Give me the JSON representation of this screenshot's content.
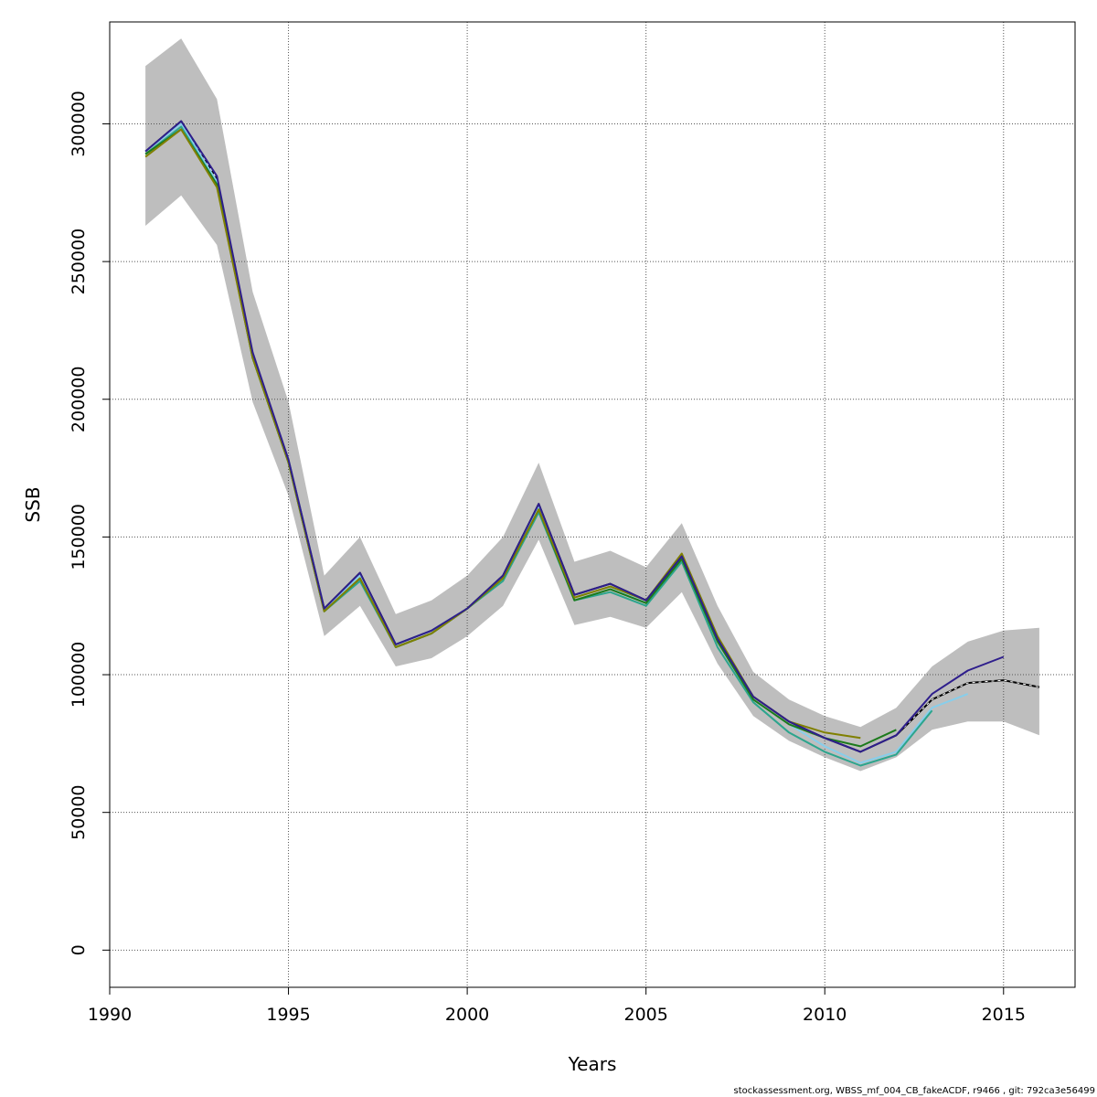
{
  "chart_data": {
    "type": "line",
    "title": "",
    "xlabel": "Years",
    "ylabel": "SSB",
    "xlim": [
      1990,
      2017
    ],
    "ylim": [
      -13500,
      337000
    ],
    "x_ticks": [
      1990,
      1995,
      2000,
      2005,
      2010,
      2015
    ],
    "x_tick_labels": [
      "1990",
      "1995",
      "2000",
      "2005",
      "2010",
      "2015"
    ],
    "y_ticks": [
      0,
      50000,
      100000,
      150000,
      200000,
      250000,
      300000
    ],
    "y_tick_labels": [
      "0",
      "50000",
      "100000",
      "150000",
      "200000",
      "250000",
      "300000"
    ],
    "grid": true,
    "legend": "none",
    "confidence_band": {
      "color": "#bebebe",
      "x": [
        1991,
        1992,
        1993,
        1994,
        1995,
        1996,
        1997,
        1998,
        1999,
        2000,
        2001,
        2002,
        2003,
        2004,
        2005,
        2006,
        2007,
        2008,
        2009,
        2010,
        2011,
        2012,
        2013,
        2014,
        2015,
        2016
      ],
      "upper": [
        321000,
        331000,
        309000,
        239000,
        199000,
        136000,
        150000,
        122000,
        127000,
        136000,
        150000,
        177000,
        141000,
        145000,
        139000,
        155000,
        125000,
        101000,
        91000,
        85000,
        81000,
        88000,
        103000,
        112000,
        116000,
        117000
      ],
      "lower": [
        263000,
        274000,
        256000,
        199000,
        165000,
        114000,
        125000,
        103000,
        106000,
        114000,
        125000,
        149000,
        118000,
        121000,
        117000,
        130000,
        104000,
        85000,
        76000,
        70000,
        65000,
        70000,
        80000,
        83000,
        83000,
        78000
      ]
    },
    "series": [
      {
        "color": "#000000",
        "dashed": true,
        "x": [
          1991,
          1992,
          1993,
          1994,
          1995,
          1996,
          1997,
          1998,
          1999,
          2000,
          2001,
          2002,
          2003,
          2004,
          2005,
          2006,
          2007,
          2008,
          2009,
          2010,
          2011,
          2012,
          2013,
          2014,
          2015,
          2016
        ],
        "values": [
          290000,
          301000,
          280000,
          216000,
          178000,
          124000,
          137000,
          111000,
          116000,
          124000,
          136000,
          162000,
          129000,
          133000,
          127000,
          143000,
          113000,
          92000,
          83000,
          77000,
          72000,
          78000,
          91000,
          97000,
          98000,
          95500
        ]
      },
      {
        "color": "#87ceeb",
        "dashed": false,
        "x": [
          1991,
          1992,
          1993,
          1994,
          1995,
          1996,
          1997,
          1998,
          1999,
          2000,
          2001,
          2002,
          2003,
          2004,
          2005,
          2006,
          2007,
          2008,
          2009,
          2010,
          2011,
          2012,
          2013,
          2014
        ],
        "values": [
          290000,
          300000,
          279000,
          216000,
          178000,
          124000,
          136000,
          111000,
          116000,
          124000,
          135000,
          161000,
          128000,
          132000,
          126000,
          142000,
          112000,
          91000,
          82000,
          74000,
          68000,
          72000,
          88000,
          93000
        ]
      },
      {
        "color": "#2ca58d",
        "dashed": false,
        "x": [
          1991,
          1992,
          1993,
          1994,
          1995,
          1996,
          1997,
          1998,
          1999,
          2000,
          2001,
          2002,
          2003,
          2004,
          2005,
          2006,
          2007,
          2008,
          2009,
          2010,
          2011,
          2012,
          2013
        ],
        "values": [
          289000,
          299000,
          278000,
          215000,
          177000,
          123000,
          134000,
          110000,
          115000,
          124000,
          134000,
          159000,
          127000,
          130000,
          125000,
          141000,
          110000,
          90000,
          79000,
          72000,
          67000,
          71000,
          87000
        ]
      },
      {
        "color": "#1b7a1b",
        "dashed": false,
        "x": [
          1991,
          1992,
          1993,
          1994,
          1995,
          1996,
          1997,
          1998,
          1999,
          2000,
          2001,
          2002,
          2003,
          2004,
          2005,
          2006,
          2007,
          2008,
          2009,
          2010,
          2011,
          2012
        ],
        "values": [
          289000,
          298000,
          278000,
          215000,
          177000,
          123000,
          135000,
          110000,
          115000,
          124000,
          135000,
          160000,
          127000,
          131000,
          126000,
          142000,
          112000,
          91000,
          82000,
          77000,
          74000,
          80000
        ]
      },
      {
        "color": "#808000",
        "dashed": false,
        "x": [
          1991,
          1992,
          1993,
          1994,
          1995,
          1996,
          1997,
          1998,
          1999,
          2000,
          2001,
          2002,
          2003,
          2004,
          2005,
          2006,
          2007,
          2008,
          2009,
          2010,
          2011
        ],
        "values": [
          288000,
          298000,
          277000,
          215000,
          177000,
          123000,
          135000,
          110000,
          115000,
          124000,
          135000,
          160000,
          128000,
          132000,
          127000,
          144000,
          114000,
          92000,
          83000,
          79000,
          77000
        ]
      },
      {
        "color": "#2e1e8c",
        "dashed": false,
        "x": [
          1991,
          1992,
          1993,
          1994,
          1995,
          1996,
          1997,
          1998,
          1999,
          2000,
          2001,
          2002,
          2003,
          2004,
          2005,
          2006,
          2007,
          2008,
          2009,
          2010,
          2011,
          2012,
          2013,
          2014,
          2015
        ],
        "values": [
          290000,
          301000,
          281000,
          217000,
          178000,
          124000,
          137000,
          111000,
          116000,
          124000,
          136000,
          162000,
          129000,
          133000,
          127000,
          143000,
          113000,
          92000,
          83000,
          77000,
          72000,
          78000,
          93000,
          101500,
          106500
        ]
      }
    ]
  },
  "footer_text": "stockassessment.org, WBSS_mf_004_CB_fakeACDF, r9466 , git: 792ca3e56499"
}
